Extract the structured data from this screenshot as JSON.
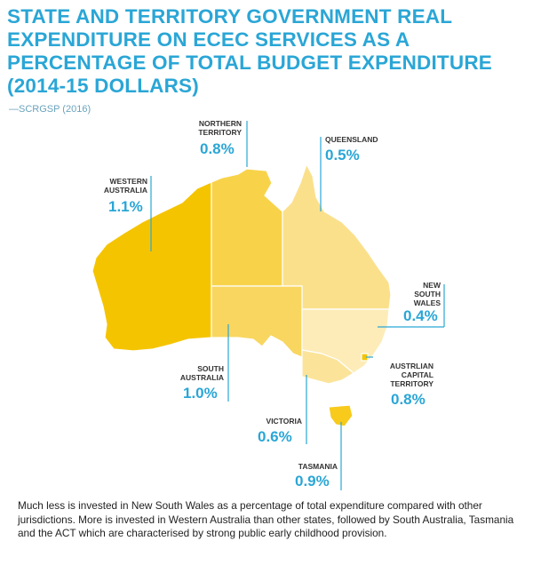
{
  "title": {
    "line1": "STATE AND TERRITORY GOVERNMENT REAL",
    "line2": "EXPENDITURE ON ECEC SERVICES AS A",
    "line3": "PERCENTAGE OF TOTAL BUDGET EXPENDITURE",
    "line4": "(2014-15 DOLLARS)"
  },
  "source": "—SCRGSP (2016)",
  "regions": {
    "wa": {
      "name1": "WESTERN",
      "name2": "AUSTRALIA",
      "value": "1.1%",
      "color": "#f5c400"
    },
    "nt": {
      "name1": "NORTHERN",
      "name2": "TERRITORY",
      "value": "0.8%",
      "color": "#f8d34a"
    },
    "qld": {
      "name1": "QUEENSLAND",
      "value": "0.5%",
      "color": "#fbe08c"
    },
    "nsw": {
      "name1": "NEW",
      "name2": "SOUTH",
      "name3": "WALES",
      "value": "0.4%",
      "color": "#fdecb8"
    },
    "sa": {
      "name1": "SOUTH",
      "name2": "AUSTRALIA",
      "value": "1.0%",
      "color": "#f8d660"
    },
    "act": {
      "name1": "AUSTRLIAN",
      "name2": "CAPITAL",
      "name3": "TERRITORY",
      "value": "0.8%",
      "color": "#f5c400"
    },
    "vic": {
      "name1": "VICTORIA",
      "value": "0.6%",
      "color": "#fbe49a"
    },
    "tas": {
      "name1": "TASMANIA",
      "value": "0.9%",
      "color": "#f7ca1c"
    }
  },
  "accent_color": "#2aa6d6",
  "note": "Much less is invested in New South Wales as a percentage of total expenditure compared with other jurisdictions. More is invested in Western Australia than other states, followed by South Australia, Tasmania and the ACT which are characterised by strong public early childhood provision."
}
